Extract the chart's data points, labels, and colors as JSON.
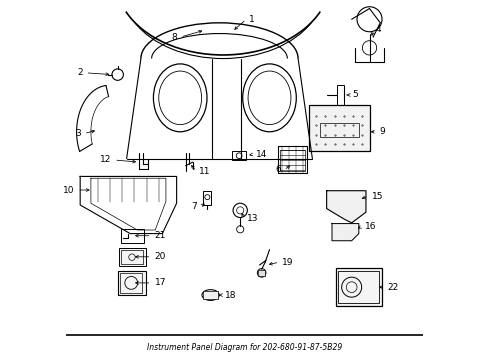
{
  "title": "Instrument Panel Diagram for 202-680-91-87-5B29",
  "bg_color": "#ffffff",
  "line_color": "#000000",
  "text_color": "#000000",
  "fig_width": 4.89,
  "fig_height": 3.6,
  "dpi": 100
}
